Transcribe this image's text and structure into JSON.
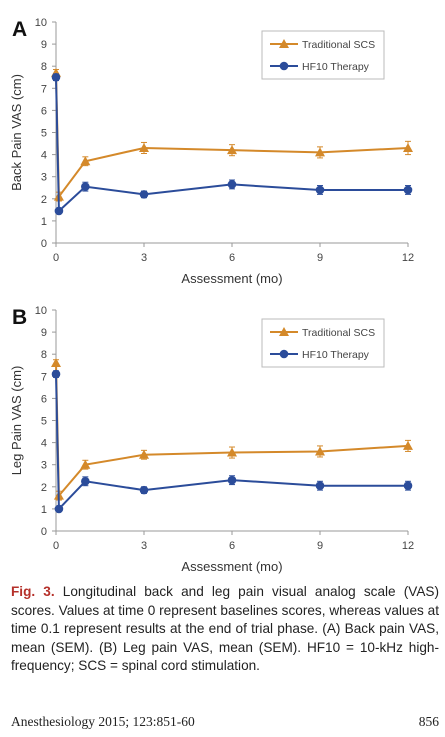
{
  "chart_data": [
    {
      "panel_label": "A",
      "type": "line",
      "ylabel": "Back Pain VAS (cm)",
      "xlabel": "Assessment (mo)",
      "xlim": [
        0,
        12
      ],
      "ylim": [
        0,
        10
      ],
      "xticks": [
        0,
        3,
        6,
        9,
        12
      ],
      "yticks": [
        0,
        1,
        2,
        3,
        4,
        5,
        6,
        7,
        8,
        9,
        10
      ],
      "legend_position": "top-right",
      "series": [
        {
          "name": "Traditional SCS",
          "marker": "triangle",
          "color": "#d4892a",
          "x": [
            0,
            0.1,
            1,
            3,
            6,
            9,
            12
          ],
          "values": [
            7.7,
            2.1,
            3.7,
            4.3,
            4.2,
            4.1,
            4.3
          ],
          "error": [
            0.15,
            0.2,
            0.2,
            0.25,
            0.25,
            0.25,
            0.3
          ]
        },
        {
          "name": "HF10 Therapy",
          "marker": "circle",
          "color": "#2b4c9a",
          "x": [
            0,
            0.1,
            1,
            3,
            6,
            9,
            12
          ],
          "values": [
            7.5,
            1.45,
            2.55,
            2.2,
            2.65,
            2.4,
            2.4
          ],
          "error": [
            0.15,
            0.1,
            0.2,
            0.15,
            0.2,
            0.2,
            0.2
          ]
        }
      ]
    },
    {
      "panel_label": "B",
      "type": "line",
      "ylabel": "Leg Pain VAS (cm)",
      "xlabel": "Assessment (mo)",
      "xlim": [
        0,
        12
      ],
      "ylim": [
        0,
        10
      ],
      "xticks": [
        0,
        3,
        6,
        9,
        12
      ],
      "yticks": [
        0,
        1,
        2,
        3,
        4,
        5,
        6,
        7,
        8,
        9,
        10
      ],
      "legend_position": "top-right",
      "series": [
        {
          "name": "Traditional SCS",
          "marker": "triangle",
          "color": "#d4892a",
          "x": [
            0,
            0.1,
            1,
            3,
            6,
            9,
            12
          ],
          "values": [
            7.6,
            1.6,
            3.0,
            3.45,
            3.55,
            3.6,
            3.85
          ],
          "error": [
            0.15,
            0.2,
            0.2,
            0.2,
            0.25,
            0.25,
            0.25
          ]
        },
        {
          "name": "HF10 Therapy",
          "marker": "circle",
          "color": "#2b4c9a",
          "x": [
            0,
            0.1,
            1,
            3,
            6,
            9,
            12
          ],
          "values": [
            7.1,
            1.0,
            2.25,
            1.85,
            2.3,
            2.05,
            2.05
          ],
          "error": [
            0.15,
            0.1,
            0.2,
            0.15,
            0.2,
            0.2,
            0.2
          ]
        }
      ]
    }
  ],
  "caption": {
    "fig_label": "Fig. 3.",
    "text": " Longitudinal back and leg pain visual analog scale (VAS) scores. Values at time 0 represent baselines scores, whereas values at time 0.1 represent results at the end of trial phase. (A) Back pain VAS, mean (SEM). (B) Leg pain VAS, mean (SEM). HF10 = 10-kHz high-frequency; SCS = spinal cord stimulation."
  },
  "footer": {
    "citation": "Anesthesiology 2015; 123:851-60",
    "page_number": "856"
  }
}
